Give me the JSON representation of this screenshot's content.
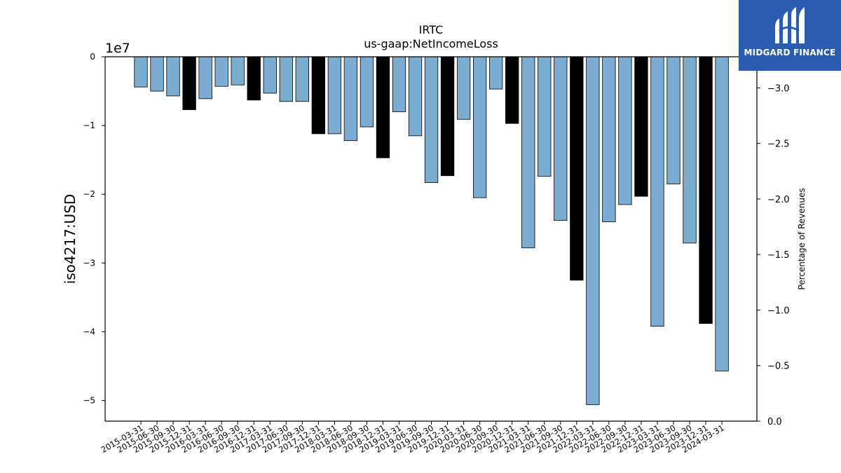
{
  "chart_data": {
    "type": "bar",
    "title": "IRTC",
    "subtitle": "us-gaap:NetIncomeLoss",
    "ylabel": "iso4217:USD",
    "y_offset_text": "1e7",
    "y2label": "Percentage of Revenues",
    "ylim": [
      -53000000,
      0
    ],
    "y2lim": [
      0.0,
      -3.28
    ],
    "y_ticks": [
      0,
      -10000000,
      -20000000,
      -30000000,
      -40000000,
      -50000000
    ],
    "y_tick_labels": [
      "0",
      "−1",
      "−2",
      "−3",
      "−4",
      "−5"
    ],
    "y2_ticks": [
      0.0,
      -0.5,
      -1.0,
      -1.5,
      -2.0,
      -2.5,
      -3.0
    ],
    "y2_tick_labels": [
      "0.0",
      "−0.5",
      "−1.0",
      "−1.5",
      "−2.0",
      "−2.5",
      "−3.0"
    ],
    "grid": false,
    "categories": [
      "2015-03-31",
      "2015-06-30",
      "2015-09-30",
      "2015-12-31",
      "2016-03-31",
      "2016-06-30",
      "2016-09-30",
      "2016-12-31",
      "2017-03-31",
      "2017-06-30",
      "2017-09-30",
      "2017-12-31",
      "2018-03-31",
      "2018-06-30",
      "2018-09-30",
      "2018-12-31",
      "2019-03-31",
      "2019-06-30",
      "2019-09-30",
      "2019-12-31",
      "2020-03-31",
      "2020-06-30",
      "2020-09-30",
      "2020-12-31",
      "2021-03-31",
      "2021-06-30",
      "2021-09-30",
      "2021-12-31",
      "2022-03-31",
      "2022-06-30",
      "2022-09-30",
      "2022-12-31",
      "2023-03-31",
      "2023-06-30",
      "2023-09-30",
      "2023-12-31",
      "2024-03-31"
    ],
    "values": [
      -4400000,
      -5000000,
      -5700000,
      -7700000,
      -6100000,
      -4300000,
      -4100000,
      -6300000,
      -5300000,
      -6500000,
      -6500000,
      -11200000,
      -11200000,
      -12200000,
      -10200000,
      -14700000,
      -8000000,
      -11500000,
      -18300000,
      -17300000,
      -9100000,
      -20500000,
      -4700000,
      -9700000,
      -27800000,
      -17400000,
      -23800000,
      -32500000,
      -50600000,
      -24000000,
      -21500000,
      -20300000,
      -39200000,
      -18500000,
      -27100000,
      -38800000,
      -45700000
    ],
    "series_kind": [
      "quarter",
      "quarter",
      "quarter",
      "annual",
      "quarter",
      "quarter",
      "quarter",
      "annual",
      "quarter",
      "quarter",
      "quarter",
      "annual",
      "quarter",
      "quarter",
      "quarter",
      "annual",
      "quarter",
      "quarter",
      "quarter",
      "annual",
      "quarter",
      "quarter",
      "quarter",
      "annual",
      "quarter",
      "quarter",
      "quarter",
      "annual",
      "quarter",
      "quarter",
      "quarter",
      "annual",
      "quarter",
      "quarter",
      "quarter",
      "annual",
      "quarter"
    ],
    "colors": {
      "quarter": "#7bacd2",
      "annual": "#000000",
      "edge": "#000000"
    }
  },
  "logo": {
    "text": "MIDGARD FINANCE",
    "background": "#2a5db0"
  }
}
